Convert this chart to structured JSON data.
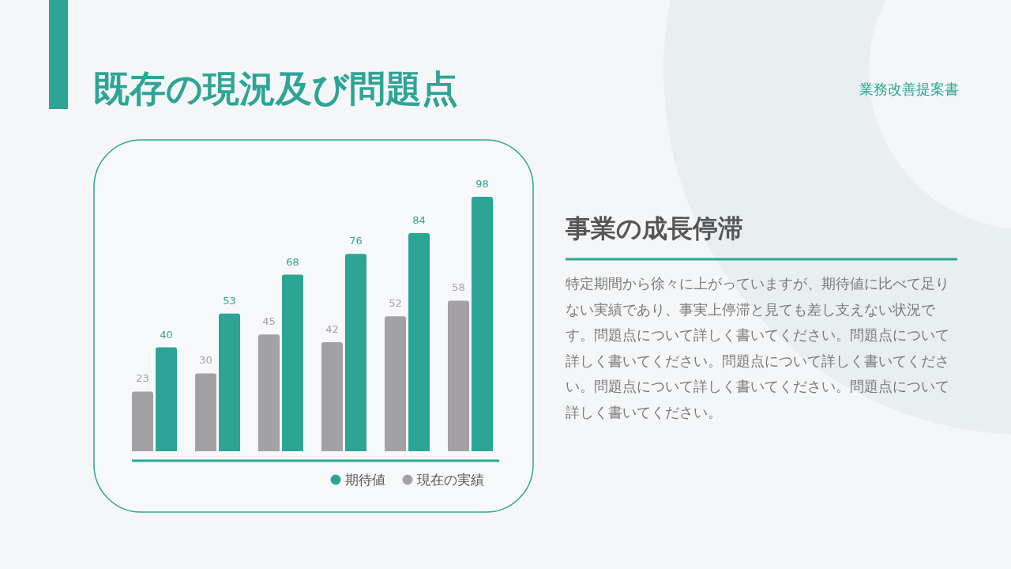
{
  "chart_data": {
    "type": "bar",
    "title": "既存の現況及び問題点",
    "categories": [
      null,
      null,
      null,
      null,
      null,
      null
    ],
    "series": [
      {
        "name": "現在の実績",
        "color": "#a3a1a5",
        "values": [
          23,
          30,
          45,
          42,
          52,
          58
        ]
      },
      {
        "name": "期待値",
        "color": "#2ca596",
        "values": [
          40,
          53,
          68,
          76,
          84,
          98
        ]
      }
    ],
    "data_labels": true,
    "legend": "bottom right",
    "annotations": [
      "業務改善提案書",
      "事業の成長停滞",
      "特定期間から徐々に上がっていますが、期待値に比べて足りない実績であり、事実上停滞と見ても差し支えない状況です。問題点について詳しく書いてください。問題点について詳しく書いてください。問題点について詳しく書いてください。問題点について詳しく書いてください。問題点について詳しく書いてください。"
    ]
  }
}
